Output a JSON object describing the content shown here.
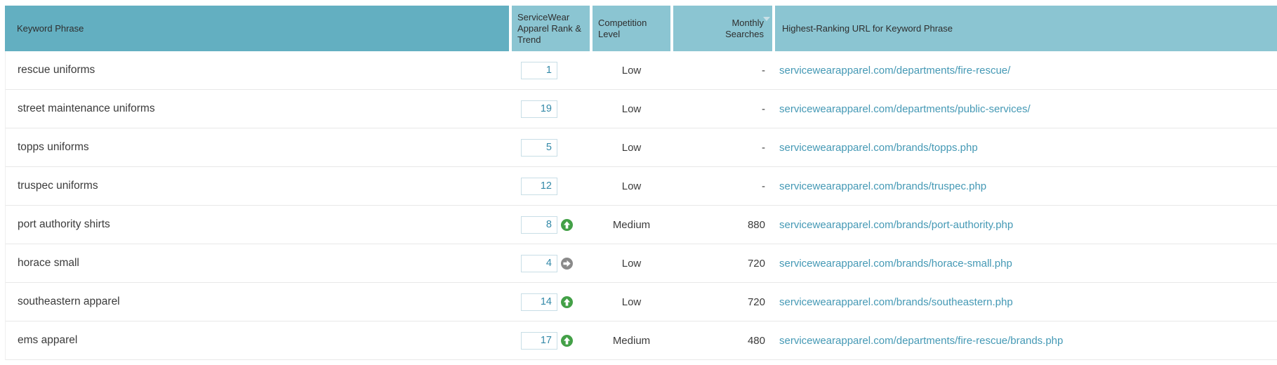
{
  "header": {
    "columns": [
      {
        "id": "keyword",
        "label": "Keyword Phrase"
      },
      {
        "id": "rank_trend",
        "label": "ServiceWear Apparel Rank & Trend"
      },
      {
        "id": "competition",
        "label": "Competition Level"
      },
      {
        "id": "monthly",
        "label": "Monthly Searches",
        "sort": "desc"
      },
      {
        "id": "url",
        "label": "Highest-Ranking URL for Keyword Phrase"
      }
    ]
  },
  "rows": [
    {
      "keyword": "rescue uniforms",
      "rank": "1",
      "trend": null,
      "competition": "Low",
      "monthly": "-",
      "url": "servicewearapparel.com/departments/fire-rescue/"
    },
    {
      "keyword": "street maintenance uniforms",
      "rank": "19",
      "trend": null,
      "competition": "Low",
      "monthly": "-",
      "url": "servicewearapparel.com/departments/public-services/"
    },
    {
      "keyword": "topps uniforms",
      "rank": "5",
      "trend": null,
      "competition": "Low",
      "monthly": "-",
      "url": "servicewearapparel.com/brands/topps.php"
    },
    {
      "keyword": "truspec uniforms",
      "rank": "12",
      "trend": null,
      "competition": "Low",
      "monthly": "-",
      "url": "servicewearapparel.com/brands/truspec.php"
    },
    {
      "keyword": "port authority shirts",
      "rank": "8",
      "trend": "up",
      "competition": "Medium",
      "monthly": "880",
      "url": "servicewearapparel.com/brands/port-authority.php"
    },
    {
      "keyword": "horace small",
      "rank": "4",
      "trend": "steady",
      "competition": "Low",
      "monthly": "720",
      "url": "servicewearapparel.com/brands/horace-small.php"
    },
    {
      "keyword": "southeastern apparel",
      "rank": "14",
      "trend": "up",
      "competition": "Low",
      "monthly": "720",
      "url": "servicewearapparel.com/brands/southeastern.php"
    },
    {
      "keyword": "ems apparel",
      "rank": "17",
      "trend": "up",
      "competition": "Medium",
      "monthly": "480",
      "url": "servicewearapparel.com/departments/fire-rescue/brands.php"
    }
  ],
  "colors": {
    "header_primary": "#63afc1",
    "header_secondary": "#8bc5d2",
    "link": "#4599b5",
    "rank_text": "#3389a8",
    "rank_box_border": "#c8dee6",
    "trend_up": "#43a047",
    "trend_steady": "#8a8a8a",
    "row_divider": "#e8e8e8"
  }
}
